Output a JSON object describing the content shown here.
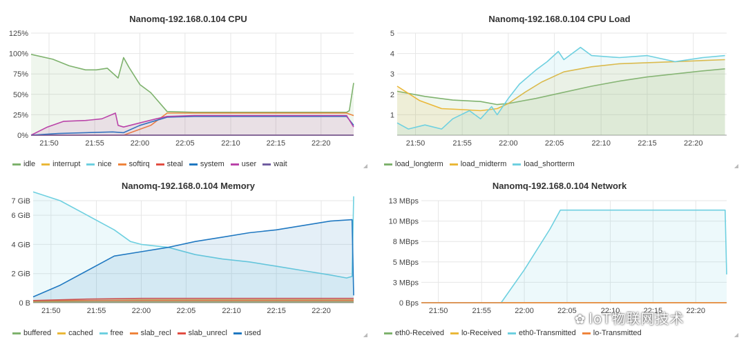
{
  "x_ticks": [
    "21:50",
    "21:55",
    "22:00",
    "22:05",
    "22:10",
    "22:15",
    "22:20"
  ],
  "watermark": "IoT物联网技术",
  "chart_data": [
    {
      "id": "cpu",
      "type": "area",
      "title": "Nanomq-192.168.0.104 CPU",
      "x_domain": [
        21.8,
        22.393
      ],
      "ylim": [
        0,
        125
      ],
      "yticks": [
        "0%",
        "25%",
        "50%",
        "75%",
        "100%",
        "125%"
      ],
      "ytick_values": [
        0,
        25,
        50,
        75,
        100,
        125
      ],
      "grid": true,
      "legend": "bottom",
      "series": [
        {
          "name": "idle",
          "color": "#7eb26d",
          "fill": true,
          "x": [
            21.8,
            21.84,
            21.87,
            21.9,
            21.92,
            21.94,
            21.96,
            21.97,
            21.98,
            22.0,
            22.02,
            22.05,
            22.1,
            22.15,
            22.2,
            22.38,
            22.385,
            22.393
          ],
          "y": [
            99,
            93,
            85,
            80,
            80,
            82,
            70,
            95,
            83,
            62,
            52,
            29,
            28,
            28,
            28,
            28,
            30,
            64
          ]
        },
        {
          "name": "interrupt",
          "color": "#eab839",
          "fill": false,
          "x": [
            21.8,
            22.393
          ],
          "y": [
            0,
            0
          ]
        },
        {
          "name": "nice",
          "color": "#6ed0e0",
          "fill": false,
          "x": [
            21.8,
            22.393
          ],
          "y": [
            0,
            0
          ]
        },
        {
          "name": "softirq",
          "color": "#ef843c",
          "fill": false,
          "x": [
            21.8,
            21.97,
            22.02,
            22.05,
            22.1,
            22.2,
            22.38,
            22.393
          ],
          "y": [
            0,
            0,
            12,
            27,
            27,
            27,
            27,
            24
          ]
        },
        {
          "name": "steal",
          "color": "#e24d42",
          "fill": false,
          "x": [
            21.8,
            22.393
          ],
          "y": [
            0,
            0
          ]
        },
        {
          "name": "system",
          "color": "#1f78c1",
          "fill": false,
          "x": [
            21.8,
            21.85,
            21.9,
            21.95,
            21.97,
            22.0,
            22.03,
            22.05,
            22.1,
            22.2,
            22.38,
            22.393
          ],
          "y": [
            0,
            2,
            3,
            4,
            3,
            12,
            18,
            22,
            23,
            23,
            23,
            12
          ]
        },
        {
          "name": "user",
          "color": "#ba43a9",
          "fill": true,
          "x": [
            21.8,
            21.83,
            21.86,
            21.9,
            21.93,
            21.955,
            21.96,
            21.97,
            22.0,
            22.03,
            22.05,
            22.1,
            22.2,
            22.38,
            22.393
          ],
          "y": [
            0,
            10,
            17,
            18,
            20,
            27,
            12,
            10,
            15,
            20,
            23,
            24,
            24,
            24,
            10
          ]
        },
        {
          "name": "wait",
          "color": "#705da0",
          "fill": false,
          "x": [
            21.8,
            22.393
          ],
          "y": [
            0,
            0
          ]
        }
      ]
    },
    {
      "id": "load",
      "type": "area",
      "title": "Nanomq-192.168.0.104 CPU Load",
      "x_domain": [
        21.8,
        22.393
      ],
      "ylim": [
        0,
        5
      ],
      "yticks": [
        "1",
        "2",
        "3",
        "4",
        "5"
      ],
      "ytick_values": [
        1,
        2,
        3,
        4,
        5
      ],
      "grid": true,
      "legend": "bottom",
      "series": [
        {
          "name": "load_longterm",
          "color": "#7eb26d",
          "fill": true,
          "x": [
            21.8,
            21.85,
            21.9,
            21.95,
            21.98,
            22.0,
            22.05,
            22.1,
            22.15,
            22.2,
            22.25,
            22.3,
            22.35,
            22.39
          ],
          "y": [
            2.15,
            1.9,
            1.72,
            1.65,
            1.5,
            1.55,
            1.8,
            2.1,
            2.4,
            2.65,
            2.85,
            3.0,
            3.15,
            3.25
          ]
        },
        {
          "name": "load_midterm",
          "color": "#eab839",
          "fill": true,
          "x": [
            21.8,
            21.84,
            21.88,
            21.92,
            21.95,
            21.98,
            22.0,
            22.03,
            22.06,
            22.1,
            22.15,
            22.2,
            22.3,
            22.39
          ],
          "y": [
            2.4,
            1.7,
            1.3,
            1.25,
            1.2,
            1.3,
            1.55,
            2.1,
            2.6,
            3.1,
            3.35,
            3.5,
            3.6,
            3.7
          ]
        },
        {
          "name": "load_shortterm",
          "color": "#6ed0e0",
          "fill": true,
          "x": [
            21.8,
            21.82,
            21.85,
            21.88,
            21.9,
            21.93,
            21.95,
            21.97,
            21.98,
            22.0,
            22.02,
            22.05,
            22.07,
            22.09,
            22.1,
            22.13,
            22.15,
            22.2,
            22.25,
            22.3,
            22.35,
            22.39
          ],
          "y": [
            0.6,
            0.3,
            0.5,
            0.3,
            0.8,
            1.2,
            0.8,
            1.4,
            1.0,
            1.8,
            2.5,
            3.2,
            3.6,
            4.1,
            3.7,
            4.3,
            3.9,
            3.8,
            3.9,
            3.6,
            3.8,
            3.9
          ]
        }
      ]
    },
    {
      "id": "memory",
      "type": "area",
      "title": "Nanomq-192.168.0.104 Memory",
      "x_domain": [
        21.8,
        22.393
      ],
      "ylim": [
        0,
        7
      ],
      "yticks": [
        "0 B",
        "2 GiB",
        "4 GiB",
        "6 GiB",
        "7 GiB"
      ],
      "ytick_values": [
        0,
        2,
        4,
        6,
        7
      ],
      "grid": true,
      "legend": "bottom",
      "series": [
        {
          "name": "buffered",
          "color": "#7eb26d",
          "fill": true,
          "x": [
            21.8,
            22.393
          ],
          "y": [
            0.05,
            0.05
          ]
        },
        {
          "name": "cached",
          "color": "#eab839",
          "fill": true,
          "x": [
            21.8,
            22.0,
            22.393
          ],
          "y": [
            0.1,
            0.2,
            0.2
          ]
        },
        {
          "name": "free",
          "color": "#6ed0e0",
          "fill": true,
          "x": [
            21.8,
            21.85,
            21.9,
            21.95,
            21.98,
            22.0,
            22.05,
            22.1,
            22.15,
            22.2,
            22.25,
            22.3,
            22.35,
            22.38,
            22.39,
            22.393
          ],
          "y": [
            7.6,
            7.0,
            6.0,
            5.0,
            4.2,
            4.0,
            3.8,
            3.3,
            3.0,
            2.8,
            2.5,
            2.2,
            1.9,
            1.7,
            1.8,
            7.3
          ]
        },
        {
          "name": "slab_recl",
          "color": "#ef843c",
          "fill": true,
          "x": [
            21.8,
            22.393
          ],
          "y": [
            0.15,
            0.15
          ]
        },
        {
          "name": "slab_unrecl",
          "color": "#e24d42",
          "fill": true,
          "x": [
            21.8,
            21.9,
            22.0,
            22.393
          ],
          "y": [
            0.15,
            0.25,
            0.3,
            0.3
          ]
        },
        {
          "name": "used",
          "color": "#1f78c1",
          "fill": true,
          "x": [
            21.8,
            21.85,
            21.9,
            21.95,
            22.0,
            22.05,
            22.1,
            22.15,
            22.2,
            22.25,
            22.3,
            22.35,
            22.39,
            22.393
          ],
          "y": [
            0.4,
            1.2,
            2.2,
            3.2,
            3.5,
            3.8,
            4.2,
            4.5,
            4.8,
            5.0,
            5.3,
            5.6,
            5.7,
            0.5
          ]
        }
      ]
    },
    {
      "id": "network",
      "type": "area",
      "title": "Nanomq-192.168.0.104 Network",
      "x_domain": [
        21.8,
        22.393
      ],
      "ylim": [
        0,
        13
      ],
      "yticks": [
        "0 Bps",
        "3 MBps",
        "5 MBps",
        "8 MBps",
        "10 MBps",
        "13 MBps"
      ],
      "ytick_values": [
        0,
        2.6,
        5.2,
        7.8,
        10.4,
        13
      ],
      "grid": true,
      "legend": "bottom",
      "series": [
        {
          "name": "eth0-Received",
          "color": "#7eb26d",
          "fill": false,
          "x": [
            21.8,
            22.393
          ],
          "y": [
            0,
            0
          ]
        },
        {
          "name": "lo-Received",
          "color": "#eab839",
          "fill": false,
          "x": [
            21.8,
            22.393
          ],
          "y": [
            0,
            0
          ]
        },
        {
          "name": "eth0-Transmitted",
          "color": "#6ed0e0",
          "fill": true,
          "x": [
            21.8,
            21.955,
            22.0,
            22.05,
            22.07,
            22.1,
            22.2,
            22.3,
            22.38,
            22.39,
            22.393
          ],
          "y": [
            0,
            0,
            4.2,
            9.4,
            11.8,
            11.8,
            11.8,
            11.8,
            11.8,
            11.8,
            3.6
          ]
        },
        {
          "name": "lo-Transmitted",
          "color": "#ef843c",
          "fill": false,
          "x": [
            21.8,
            22.393
          ],
          "y": [
            0,
            0
          ]
        }
      ]
    }
  ]
}
